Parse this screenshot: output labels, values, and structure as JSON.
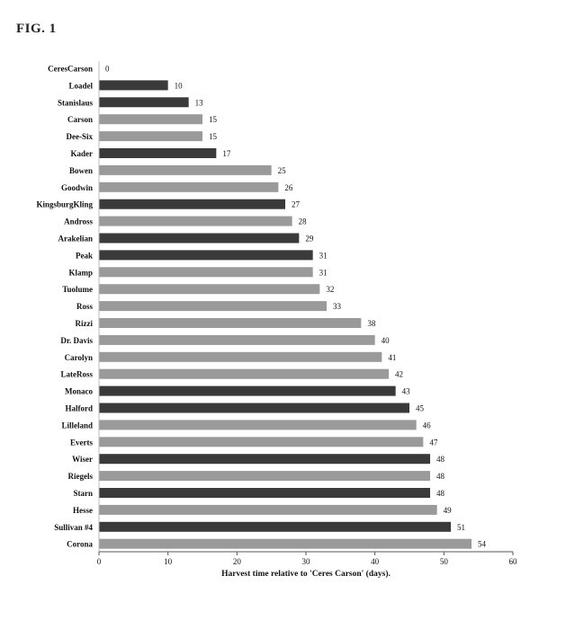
{
  "figure_label": "FIG. 1",
  "colors": {
    "dark": "#3a3a3a",
    "light": "#9a9a9a",
    "axis": "#555555"
  },
  "chart_data": {
    "type": "bar",
    "orientation": "horizontal",
    "title": "",
    "xlabel": "Harvest time relative to 'Ceres Carson'  (days).",
    "ylabel": "",
    "xlim": [
      0,
      60
    ],
    "xticks": [
      0,
      10,
      20,
      30,
      40,
      50,
      60
    ],
    "grid": false,
    "categories": [
      "CeresCarson",
      "Loadel",
      "Stanislaus",
      "Carson",
      "Dee-Six",
      "Kader",
      "Bowen",
      "Goodwin",
      "KingsburgKling",
      "Andross",
      "Arakelian",
      "Peak",
      "Klamp",
      "Tuolume",
      "Ross",
      "Rizzi",
      "Dr. Davis",
      "Carolyn",
      "LateRoss",
      "Monaco",
      "Halford",
      "Lilleland",
      "Everts",
      "Wiser",
      "Riegels",
      "Starn",
      "Hesse",
      "Sullivan #4",
      "Corona"
    ],
    "values": [
      0,
      10,
      13,
      15,
      15,
      17,
      25,
      26,
      27,
      28,
      29,
      31,
      31,
      32,
      33,
      38,
      40,
      41,
      42,
      43,
      45,
      46,
      47,
      48,
      48,
      48,
      49,
      51,
      54
    ],
    "shades": [
      "light",
      "dark",
      "dark",
      "light",
      "light",
      "dark",
      "light",
      "light",
      "dark",
      "light",
      "dark",
      "dark",
      "light",
      "light",
      "light",
      "light",
      "light",
      "light",
      "light",
      "dark",
      "dark",
      "light",
      "light",
      "dark",
      "light",
      "dark",
      "light",
      "dark",
      "light"
    ]
  }
}
